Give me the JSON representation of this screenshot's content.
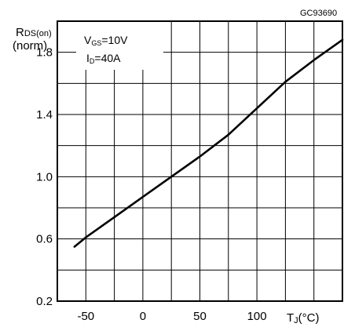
{
  "chart_data": {
    "type": "line",
    "figure_code": "GC93690",
    "ylabel": {
      "main": "R",
      "sub": "DS(on)",
      "line2": "(norm)"
    },
    "xlabel": {
      "main": "T",
      "sub": "J",
      "unit": "(°C)"
    },
    "conditions": [
      {
        "main": "V",
        "sub": "GS",
        "value": "=10V"
      },
      {
        "main": "I",
        "sub": "D",
        "value": "=40A"
      }
    ],
    "xlim": [
      -75,
      175
    ],
    "ylim": [
      0.2,
      2.0
    ],
    "xticks": [
      {
        "value": -50,
        "label": "-50"
      },
      {
        "value": 0,
        "label": "0"
      },
      {
        "value": 50,
        "label": "50"
      },
      {
        "value": 100,
        "label": "100"
      }
    ],
    "yticks": [
      {
        "value": 0.2,
        "label": "0.2"
      },
      {
        "value": 0.6,
        "label": "0.6"
      },
      {
        "value": 1.0,
        "label": "1.0"
      },
      {
        "value": 1.4,
        "label": "1.4"
      },
      {
        "value": 1.8,
        "label": "1.8"
      }
    ],
    "grid": {
      "x_step": 25,
      "y_step": 0.2,
      "shown": true
    },
    "series": [
      {
        "x": [
          -60,
          -50,
          -25,
          0,
          25,
          50,
          75,
          100,
          125,
          150,
          175
        ],
        "y": [
          0.55,
          0.61,
          0.74,
          0.87,
          1.0,
          1.13,
          1.27,
          1.44,
          1.61,
          1.75,
          1.88
        ]
      }
    ]
  }
}
